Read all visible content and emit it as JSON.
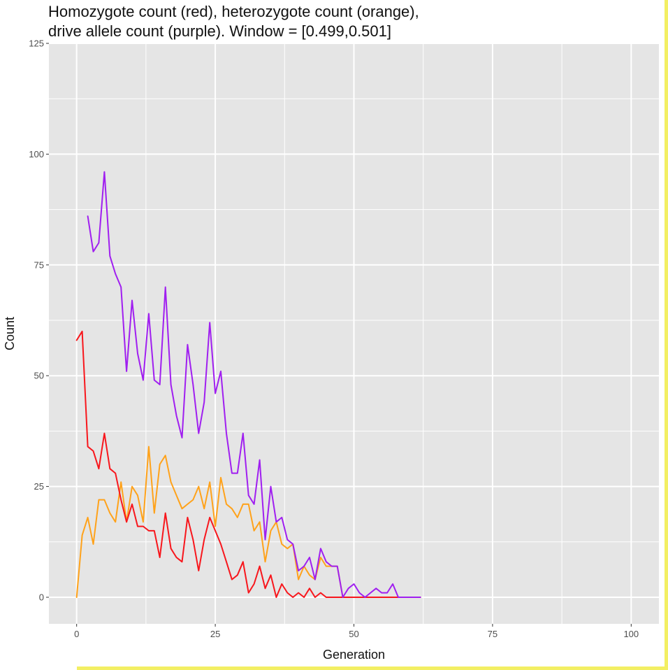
{
  "chart_data": {
    "type": "line",
    "title_lines": [
      "Homozygote count (red), heterozygote count (orange),",
      "drive allele count (purple). Window = [0.499,0.501]"
    ],
    "xlabel": "Generation",
    "ylabel": "Count",
    "xlim": [
      -5,
      105
    ],
    "ylim": [
      -6,
      125
    ],
    "x_ticks": [
      0,
      25,
      50,
      75,
      100
    ],
    "x_tick_labels": [
      "0",
      "25",
      "50",
      "75",
      "100"
    ],
    "y_ticks": [
      0,
      25,
      50,
      75,
      100,
      125
    ],
    "y_tick_labels": [
      "0",
      "25",
      "50",
      "75",
      "100",
      "125"
    ],
    "grid": true,
    "legend": "none",
    "colors": {
      "panel": "#e5e5e5",
      "grid": "#ffffff",
      "red": "#f8161c",
      "orange": "#ffa21a",
      "purple": "#a01ff0"
    },
    "series": [
      {
        "color": "orange",
        "x": [
          0,
          1,
          2,
          3,
          4,
          5,
          6,
          7,
          8,
          9,
          10,
          11,
          12,
          13,
          14,
          15,
          16,
          17,
          18,
          19,
          20,
          21,
          22,
          23,
          24,
          25,
          26,
          27,
          28,
          29,
          30,
          31,
          32,
          33,
          34,
          35,
          36,
          37,
          38,
          39,
          40,
          41,
          42,
          43,
          44,
          45,
          46,
          47,
          48,
          49,
          50,
          51,
          52,
          53,
          54,
          55,
          56,
          57,
          58,
          59,
          60,
          61,
          62
        ],
        "y": [
          0,
          14,
          18,
          12,
          22,
          22,
          19,
          17,
          26,
          17,
          25,
          23,
          17,
          34,
          19,
          30,
          32,
          26,
          23,
          20,
          21,
          22,
          25,
          20,
          26,
          16,
          27,
          21,
          20,
          18,
          21,
          21,
          15,
          17,
          8,
          15,
          17,
          12,
          11,
          12,
          4,
          7,
          5,
          4,
          9,
          7,
          7,
          7,
          0,
          0,
          0,
          0,
          0,
          0,
          0,
          0,
          0,
          0,
          0,
          0,
          0,
          0,
          0
        ]
      },
      {
        "color": "red",
        "x": [
          0,
          1,
          2,
          3,
          4,
          5,
          6,
          7,
          8,
          9,
          10,
          11,
          12,
          13,
          14,
          15,
          16,
          17,
          18,
          19,
          20,
          21,
          22,
          23,
          24,
          25,
          26,
          27,
          28,
          29,
          30,
          31,
          32,
          33,
          34,
          35,
          36,
          37,
          38,
          39,
          40,
          41,
          42,
          43,
          44,
          45,
          46,
          47,
          48,
          49,
          50,
          51,
          52,
          53,
          54,
          55,
          56,
          57,
          58,
          59,
          60,
          61,
          62
        ],
        "y": [
          58,
          60,
          34,
          33,
          29,
          37,
          29,
          28,
          22,
          17,
          21,
          16,
          16,
          15,
          15,
          9,
          19,
          11,
          9,
          8,
          18,
          13,
          6,
          13,
          18,
          15,
          12,
          8,
          4,
          5,
          8,
          1,
          3,
          7,
          2,
          5,
          0,
          3,
          1,
          0,
          1,
          0,
          2,
          0,
          1,
          0,
          0,
          0,
          0,
          0,
          0,
          0,
          0,
          0,
          0,
          0,
          0,
          0,
          0,
          0,
          0,
          0,
          0
        ]
      },
      {
        "color": "purple",
        "x": [
          2,
          3,
          4,
          5,
          6,
          7,
          8,
          9,
          10,
          11,
          12,
          13,
          14,
          15,
          16,
          17,
          18,
          19,
          20,
          21,
          22,
          23,
          24,
          25,
          26,
          27,
          28,
          29,
          30,
          31,
          32,
          33,
          34,
          35,
          36,
          37,
          38,
          39,
          40,
          41,
          42,
          43,
          44,
          45,
          46,
          47,
          48,
          49,
          50,
          51,
          52,
          53,
          54,
          55,
          56,
          57,
          58,
          59,
          60,
          61,
          62
        ],
        "y": [
          86,
          78,
          80,
          96,
          77,
          73,
          70,
          51,
          67,
          55,
          49,
          64,
          49,
          48,
          70,
          48,
          41,
          36,
          57,
          48,
          37,
          44,
          62,
          46,
          51,
          37,
          28,
          28,
          37,
          23,
          21,
          31,
          13,
          25,
          17,
          18,
          13,
          12,
          6,
          7,
          9,
          4,
          11,
          8,
          7,
          7,
          0,
          2,
          3,
          1,
          0,
          1,
          2,
          1,
          1,
          3,
          0,
          0,
          0,
          0,
          0
        ]
      }
    ]
  }
}
